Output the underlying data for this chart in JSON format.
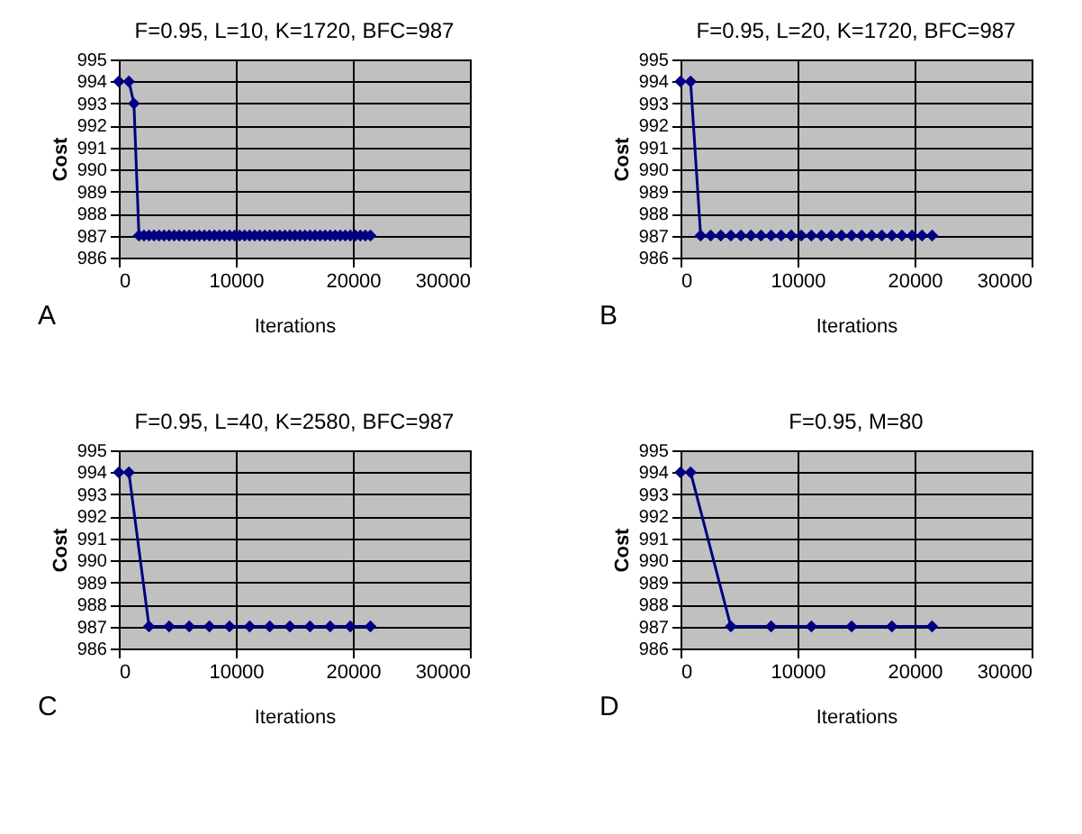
{
  "chart_data": [
    {
      "type": "line",
      "title": "F=0.95,  L=10, K=1720, BFC=987",
      "xlabel": "Iterations",
      "ylabel": "Cost",
      "annotations": [
        "A"
      ],
      "marker": "diamond",
      "grid": true,
      "xlim": [
        0,
        30000
      ],
      "xticks": [
        0,
        10000,
        20000,
        30000
      ],
      "ylim": [
        986,
        995
      ],
      "yticks": [
        986,
        987,
        988,
        989,
        990,
        991,
        992,
        993,
        994,
        995
      ],
      "series": [
        {
          "color": "#000080",
          "x": [
            0,
            860,
            1290,
            1720,
            2150,
            2580,
            3010,
            3440,
            3870,
            4300,
            4730,
            5160,
            5590,
            6020,
            6450,
            6880,
            7310,
            7740,
            8170,
            8600,
            9030,
            9460,
            9890,
            10320,
            10750,
            11180,
            11610,
            12040,
            12470,
            12900,
            13330,
            13760,
            14190,
            14620,
            15050,
            15480,
            15910,
            16340,
            16770,
            17200,
            17630,
            18060,
            18490,
            18920,
            19350,
            19780,
            20210,
            20640,
            21070,
            21500
          ],
          "values": [
            994,
            994,
            993,
            987,
            987,
            987,
            987,
            987,
            987,
            987,
            987,
            987,
            987,
            987,
            987,
            987,
            987,
            987,
            987,
            987,
            987,
            987,
            987,
            987,
            987,
            987,
            987,
            987,
            987,
            987,
            987,
            987,
            987,
            987,
            987,
            987,
            987,
            987,
            987,
            987,
            987,
            987,
            987,
            987,
            987,
            987,
            987,
            987,
            987,
            987
          ]
        }
      ]
    },
    {
      "type": "line",
      "title": "F=0.95, L=20, K=1720, BFC=987",
      "xlabel": "Iterations",
      "ylabel": "Cost",
      "annotations": [
        "B"
      ],
      "marker": "diamond",
      "grid": true,
      "xlim": [
        0,
        30000
      ],
      "xticks": [
        0,
        10000,
        20000,
        30000
      ],
      "ylim": [
        986,
        995
      ],
      "yticks": [
        986,
        987,
        988,
        989,
        990,
        991,
        992,
        993,
        994,
        995
      ],
      "series": [
        {
          "color": "#000080",
          "x": [
            0,
            860,
            1720,
            2580,
            3440,
            4300,
            5160,
            6020,
            6880,
            7740,
            8600,
            9460,
            10320,
            11180,
            12040,
            12900,
            13760,
            14620,
            15480,
            16340,
            17200,
            18060,
            18920,
            19780,
            20640,
            21500
          ],
          "values": [
            994,
            994,
            987,
            987,
            987,
            987,
            987,
            987,
            987,
            987,
            987,
            987,
            987,
            987,
            987,
            987,
            987,
            987,
            987,
            987,
            987,
            987,
            987,
            987,
            987,
            987
          ]
        }
      ]
    },
    {
      "type": "line",
      "title": "F=0.95, L=40, K=2580, BFC=987",
      "xlabel": "Iterations",
      "ylabel": "Cost",
      "annotations": [
        "C"
      ],
      "marker": "diamond",
      "grid": true,
      "xlim": [
        0,
        30000
      ],
      "xticks": [
        0,
        10000,
        20000,
        30000
      ],
      "ylim": [
        986,
        995
      ],
      "yticks": [
        986,
        987,
        988,
        989,
        990,
        991,
        992,
        993,
        994,
        995
      ],
      "series": [
        {
          "color": "#000080",
          "x": [
            0,
            860,
            2580,
            4300,
            6020,
            7740,
            9460,
            11180,
            12900,
            14620,
            16340,
            18060,
            19780,
            21500
          ],
          "values": [
            994,
            994,
            987,
            987,
            987,
            987,
            987,
            987,
            987,
            987,
            987,
            987,
            987,
            987
          ]
        }
      ]
    },
    {
      "type": "line",
      "title": "F=0.95, M=80",
      "xlabel": "Iterations",
      "ylabel": "Cost",
      "annotations": [
        "D"
      ],
      "marker": "diamond",
      "grid": true,
      "xlim": [
        0,
        30000
      ],
      "xticks": [
        0,
        10000,
        20000,
        30000
      ],
      "ylim": [
        986,
        995
      ],
      "yticks": [
        986,
        987,
        988,
        989,
        990,
        991,
        992,
        993,
        994,
        995
      ],
      "series": [
        {
          "color": "#000080",
          "x": [
            0,
            860,
            4300,
            7740,
            11180,
            14620,
            18060,
            21500
          ],
          "values": [
            994,
            994,
            987,
            987,
            987,
            987,
            987,
            987
          ]
        }
      ]
    }
  ]
}
